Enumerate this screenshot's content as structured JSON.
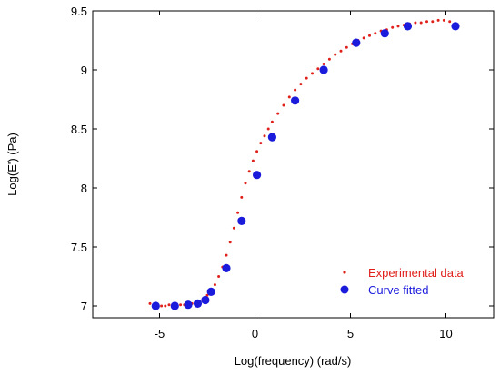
{
  "chart_data": {
    "type": "scatter",
    "title": "",
    "xlabel": "Log(frequency) (rad/s)",
    "ylabel": "Log(E') (Pa)",
    "xlim": [
      -8.5,
      12.5
    ],
    "ylim": [
      6.9,
      9.5
    ],
    "xticks": [
      -5,
      0,
      5,
      10
    ],
    "xtick_labels": [
      "-5",
      "0",
      "5",
      "10"
    ],
    "yticks": [
      7,
      7.5,
      8,
      8.5,
      9,
      9.5
    ],
    "ytick_labels": [
      "7",
      "7.5",
      "8",
      "8.5",
      "9",
      "9.5"
    ],
    "grid": false,
    "legend_position": "bottom-right",
    "series": [
      {
        "name": "Experimental data",
        "marker": "small-dot",
        "color": "#e0201a",
        "x": [
          -5.5,
          -5.3,
          -5.1,
          -4.9,
          -4.7,
          -4.5,
          -4.3,
          -4.1,
          -3.9,
          -3.7,
          -3.5,
          -3.3,
          -3.1,
          -2.9,
          -2.7,
          -2.5,
          -2.3,
          -2.1,
          -1.9,
          -1.7,
          -1.5,
          -1.3,
          -1.1,
          -0.9,
          -0.7,
          -0.5,
          -0.3,
          -0.1,
          0.1,
          0.3,
          0.5,
          0.7,
          0.9,
          1.2,
          1.5,
          1.8,
          2.1,
          2.4,
          2.7,
          3.0,
          3.3,
          3.6,
          3.9,
          4.2,
          4.5,
          4.8,
          5.1,
          5.4,
          5.7,
          6.0,
          6.3,
          6.6,
          6.9,
          7.2,
          7.5,
          7.8,
          8.1,
          8.4,
          8.7,
          9.0,
          9.3,
          9.6,
          9.9,
          10.2,
          10.5
        ],
        "y": [
          7.02,
          7.0,
          7.01,
          7.0,
          7.0,
          7.01,
          7.0,
          7.01,
          7.01,
          7.01,
          7.02,
          7.02,
          7.03,
          7.04,
          7.06,
          7.09,
          7.13,
          7.18,
          7.25,
          7.33,
          7.43,
          7.54,
          7.66,
          7.79,
          7.92,
          8.04,
          8.14,
          8.23,
          8.31,
          8.38,
          8.44,
          8.5,
          8.56,
          8.63,
          8.7,
          8.77,
          8.83,
          8.88,
          8.93,
          8.97,
          9.01,
          9.05,
          9.09,
          9.13,
          9.16,
          9.19,
          9.22,
          9.25,
          9.27,
          9.29,
          9.31,
          9.33,
          9.34,
          9.36,
          9.37,
          9.38,
          9.39,
          9.4,
          9.4,
          9.41,
          9.41,
          9.42,
          9.42,
          9.41,
          9.38
        ]
      },
      {
        "name": "Curve fitted",
        "marker": "circle",
        "color": "#1b1bdc",
        "x": [
          -5.2,
          -4.2,
          -3.5,
          -3.0,
          -2.6,
          -2.3,
          -1.5,
          -0.7,
          0.1,
          0.9,
          2.1,
          3.6,
          5.3,
          6.8,
          8.0,
          10.5
        ],
        "y": [
          7.0,
          7.0,
          7.01,
          7.02,
          7.05,
          7.12,
          7.32,
          7.72,
          8.11,
          8.43,
          8.74,
          9.0,
          9.23,
          9.31,
          9.37,
          9.37
        ]
      }
    ]
  }
}
